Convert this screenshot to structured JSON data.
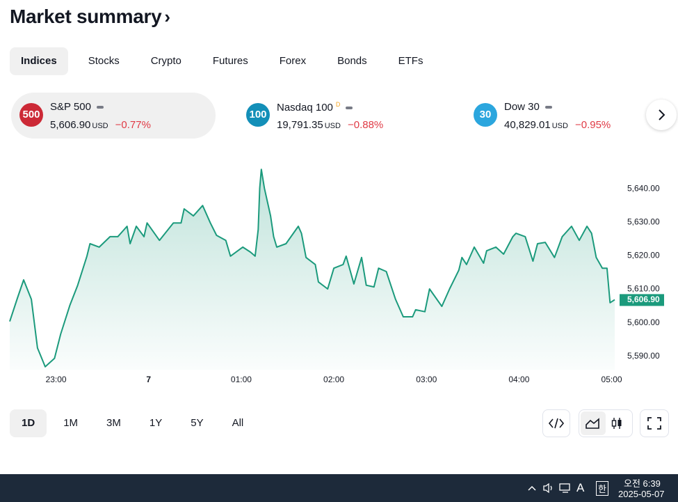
{
  "header": {
    "title": "Market summary"
  },
  "tabs": [
    "Indices",
    "Stocks",
    "Crypto",
    "Futures",
    "Forex",
    "Bonds",
    "ETFs"
  ],
  "cards": [
    {
      "badge": "500",
      "name": "S&P 500",
      "price": "5,606.90",
      "currency": "USD",
      "change": "−0.77%",
      "color": "#cc2936"
    },
    {
      "badge": "100",
      "name": "Nasdaq 100",
      "flag": "D",
      "price": "19,791.35",
      "currency": "USD",
      "change": "−0.88%",
      "color": "#138fb8"
    },
    {
      "badge": "30",
      "name": "Dow 30",
      "price": "40,829.01",
      "currency": "USD",
      "change": "−0.95%",
      "color": "#2ba6de"
    }
  ],
  "chart_data": {
    "type": "area",
    "color": "#1b9a7c",
    "x": [
      1350,
      1355,
      1359,
      1364,
      1368,
      1373,
      1379,
      1383,
      1389,
      1394,
      1400,
      1402,
      1408,
      1415,
      1420,
      1426,
      1428,
      1432,
      1437,
      1439,
      1447,
      1456,
      1461,
      1463,
      1469,
      1475,
      1480,
      1484,
      1490,
      1493,
      1501,
      1506,
      1509,
      1511,
      1512,
      1513,
      1515,
      1519,
      1521,
      1523,
      1529,
      1537,
      1539,
      1542,
      1548,
      1550,
      1556,
      1560,
      1566,
      1568,
      1573,
      1578,
      1581,
      1586,
      1589,
      1594,
      1600,
      1605,
      1611,
      1613,
      1619,
      1622,
      1630,
      1635,
      1641,
      1643,
      1646,
      1651,
      1657,
      1659,
      1665,
      1670,
      1676,
      1678,
      1684,
      1689,
      1692,
      1697,
      1703,
      1708,
      1714,
      1719,
      1724,
      1727,
      1730,
      1734,
      1737,
      1739,
      1742
    ],
    "values": [
      5600.4,
      5607.4,
      5612.8,
      5607.0,
      5592.5,
      5586.9,
      5589.4,
      5596.6,
      5605.3,
      5611.2,
      5619.9,
      5623.6,
      5622.6,
      5625.7,
      5625.7,
      5628.8,
      5623.6,
      5628.8,
      5625.7,
      5629.8,
      5624.6,
      5629.8,
      5629.8,
      5634.0,
      5631.9,
      5635.0,
      5629.8,
      5626.1,
      5624.6,
      5619.9,
      5622.6,
      5621.1,
      5619.9,
      5627.8,
      5640.2,
      5645.8,
      5640.2,
      5631.9,
      5625.7,
      5622.6,
      5623.6,
      5628.8,
      5626.7,
      5619.5,
      5617.4,
      5612.2,
      5610.1,
      5616.3,
      5617.4,
      5619.9,
      5611.6,
      5619.5,
      5611.2,
      5610.7,
      5616.3,
      5615.3,
      5607.0,
      5601.8,
      5601.8,
      5603.9,
      5603.3,
      5610.1,
      5604.9,
      5610.1,
      5615.7,
      5619.5,
      5617.4,
      5622.6,
      5617.8,
      5621.5,
      5622.6,
      5620.5,
      5625.7,
      5626.7,
      5625.7,
      5618.4,
      5623.6,
      5624.0,
      5619.5,
      5625.7,
      5628.8,
      5624.6,
      5628.8,
      5626.7,
      5619.5,
      5616.3,
      5616.3,
      5606.0,
      5606.9
    ],
    "last_label": "5,606.90",
    "xlim": [
      1350,
      1742
    ],
    "xticks": [
      {
        "value": 1380,
        "label": "23:00"
      },
      {
        "value": 1440,
        "label": "7"
      },
      {
        "value": 1500,
        "label": "01:00"
      },
      {
        "value": 1560,
        "label": "02:00"
      },
      {
        "value": 1620,
        "label": "03:00"
      },
      {
        "value": 1680,
        "label": "04:00"
      },
      {
        "value": 1740,
        "label": "05:00"
      }
    ],
    "ylim": [
      5586,
      5650
    ],
    "yticks": [
      {
        "value": 5590,
        "label": "5,590.00"
      },
      {
        "value": 5600,
        "label": "5,600.00"
      },
      {
        "value": 5610,
        "label": "5,610.00"
      },
      {
        "value": 5620,
        "label": "5,620.00"
      },
      {
        "value": 5630,
        "label": "5,630.00"
      },
      {
        "value": 5640,
        "label": "5,640.00"
      }
    ]
  },
  "ranges": [
    "1D",
    "1M",
    "3M",
    "1Y",
    "5Y",
    "All"
  ],
  "taskbar": {
    "ime": "A",
    "lang": "한",
    "time": "오전 6:39",
    "date": "2025-05-07"
  }
}
